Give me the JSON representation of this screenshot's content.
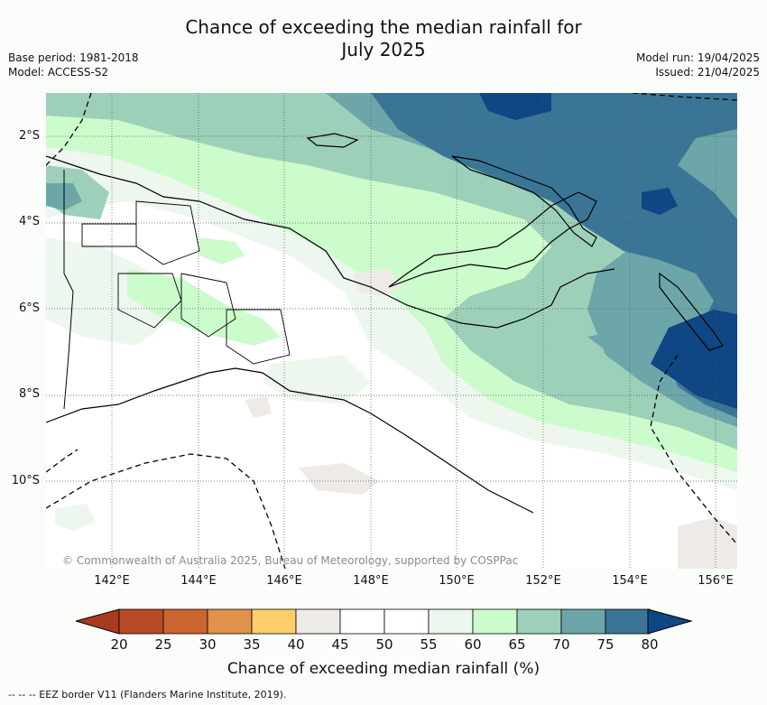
{
  "title_line1": "Chance of exceeding the median rainfall for",
  "title_line2": "July 2025",
  "meta_left": [
    "Base period: 1981-2018",
    "Model: ACCESS-S2"
  ],
  "meta_right": [
    "Model run: 19/04/2025",
    "Issued: 21/04/2025"
  ],
  "lat_labels": [
    "2°S",
    "4°S",
    "6°S",
    "8°S",
    "10°S"
  ],
  "lon_labels": [
    "142°E",
    "144°E",
    "146°E",
    "148°E",
    "150°E",
    "152°E",
    "154°E",
    "156°E"
  ],
  "copyright": "© Commonwealth of Australia 2025, Bureau of Meteorology, supported by COSPPac",
  "colorbar": {
    "ticks": [
      "20",
      "25",
      "30",
      "35",
      "40",
      "45",
      "50",
      "55",
      "60",
      "65",
      "70",
      "75",
      "80"
    ],
    "colors": [
      "#a83a1e",
      "#b84a26",
      "#cb6530",
      "#e0924a",
      "#fdcf6a",
      "#eeebe7",
      "#ffffff",
      "#ffffff",
      "#eef7ee",
      "#ccfccc",
      "#9dd0b8",
      "#6ca6a8",
      "#3b7596",
      "#0e4783"
    ],
    "label": "Chance of exceeding median rainfall (%)"
  },
  "footnote": "--  --  -- EEZ border V11 (Flanders Marine Institute, 2019).",
  "colors": {
    "c40_45": "#eeebe7",
    "c55_60": "#eef7ee",
    "c60_65": "#ccfccc",
    "c65_70": "#9dd0b8",
    "c70_75": "#6ca6a8",
    "c75_80": "#3b7596",
    "c80_plus": "#0e4783"
  }
}
